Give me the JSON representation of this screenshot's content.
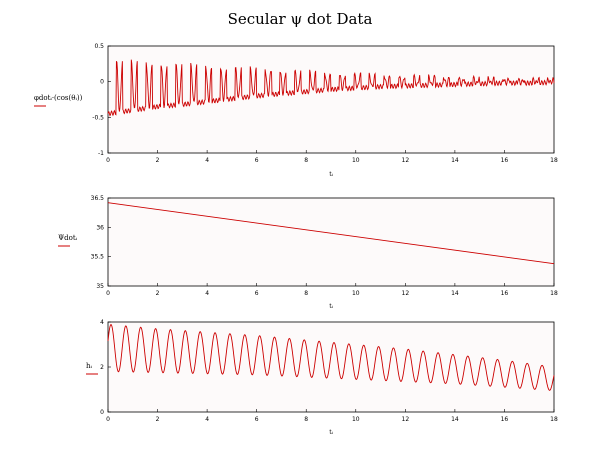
{
  "title": "Secular ψ dot Data",
  "colors": {
    "series": "#cc0000",
    "panel_bg": "#fdfafa",
    "axis": "#000000"
  },
  "chart_data": [
    {
      "type": "line",
      "ylabel": "φdotᵢ·(cos(θᵢ))",
      "xlabel": "tᵢ",
      "xlim": [
        0,
        18
      ],
      "ylim": [
        -1,
        0.5
      ],
      "xticks": [
        "0",
        "2",
        "4",
        "6",
        "8",
        "10",
        "12",
        "14",
        "16",
        "18"
      ],
      "yticks": [
        "0.5",
        "0",
        "-0.5",
        "-1"
      ],
      "grid": false,
      "series": [
        {
          "x": [
            0,
            1,
            2,
            3,
            4,
            5,
            6,
            7,
            8,
            9,
            10,
            11,
            12,
            13,
            14,
            15,
            16,
            17,
            18
          ],
          "values": [
            -0.45,
            -0.4,
            -0.35,
            -0.32,
            -0.28,
            -0.24,
            -0.2,
            -0.17,
            -0.14,
            -0.11,
            -0.09,
            -0.07,
            -0.06,
            -0.05,
            -0.04,
            -0.03,
            -0.02,
            -0.02,
            -0.01
          ],
          "upper": [
            0.3,
            0.28,
            0.26,
            0.24,
            0.22,
            0.2,
            0.18,
            0.16,
            0.14,
            0.12,
            0.1,
            0.09,
            0.08,
            0.07,
            0.06,
            0.05,
            0.04,
            0.03,
            0.03
          ]
        }
      ]
    },
    {
      "type": "line",
      "ylabel": "Ψdotᵢ",
      "xlabel": "tᵢ",
      "xlim": [
        0,
        18
      ],
      "ylim": [
        35,
        36.5
      ],
      "xticks": [
        "0",
        "2",
        "4",
        "6",
        "8",
        "10",
        "12",
        "14",
        "16",
        "18"
      ],
      "yticks": [
        "36.5",
        "36",
        "35.5",
        "35"
      ],
      "grid": false,
      "series": [
        {
          "x": [
            0,
            18
          ],
          "values": [
            36.42,
            35.38
          ]
        }
      ]
    },
    {
      "type": "line",
      "ylabel": "hᵢ",
      "xlabel": "tᵢ",
      "xlim": [
        0,
        18
      ],
      "ylim": [
        0,
        4
      ],
      "xticks": [
        "0",
        "2",
        "4",
        "6",
        "8",
        "10",
        "12",
        "14",
        "16",
        "18"
      ],
      "yticks": [
        "4",
        "2",
        "0"
      ],
      "grid": false,
      "series": [
        {
          "x": [
            0,
            2,
            4,
            6,
            8,
            10,
            12,
            14,
            16,
            18
          ],
          "upper": [
            3.9,
            3.7,
            3.55,
            3.4,
            3.2,
            3.0,
            2.8,
            2.55,
            2.3,
            2.0
          ],
          "lower": [
            1.8,
            1.75,
            1.7,
            1.65,
            1.55,
            1.45,
            1.35,
            1.25,
            1.1,
            0.95
          ]
        }
      ]
    }
  ]
}
